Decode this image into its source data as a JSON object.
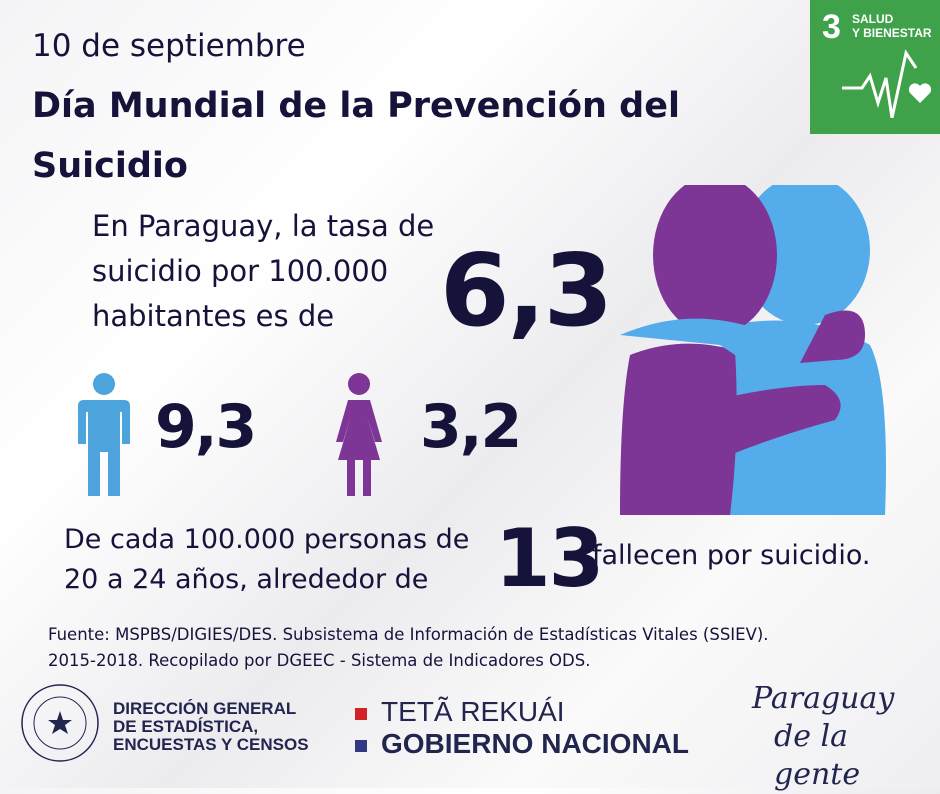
{
  "header": {
    "date": "10 de septiembre",
    "title": "Día Mundial de la Prevención del Suicidio"
  },
  "sdg_badge": {
    "number": "3",
    "label_line1": "SALUD",
    "label_line2": "Y BIENESTAR",
    "icon": "heartbeat-heart-icon",
    "color": "#3fa14a"
  },
  "rate": {
    "text_line1": "En Paraguay, la tasa de",
    "text_line2": "suicidio por 100.000",
    "text_line3": "habitantes es de",
    "value": "6,3"
  },
  "by_sex": {
    "male": {
      "icon": "male-person-icon",
      "value": "9,3",
      "color": "#4da3dc"
    },
    "female": {
      "icon": "female-person-icon",
      "value": "3,2",
      "color": "#7d3596"
    }
  },
  "age_group": {
    "text_line1": "De cada 100.000 personas de",
    "text_line2": "20 a 24 años, alrededor de",
    "value": "13",
    "suffix": "fallecen por suicidio."
  },
  "source": {
    "line1": "Fuente: MSPBS/DIGIES/DES. Subsistema de Información de Estadísticas Vitales (SSIEV).",
    "line2": "2015-2018. Recopilado por DGEEC - Sistema de Indicadores ODS."
  },
  "footer": {
    "dgeec_seal": "REPUBLICA DEL PARAGUAY",
    "dgeec_line1": "DIRECCIÓN GENERAL",
    "dgeec_line2": "DE ESTADÍSTICA,",
    "dgeec_line3": "ENCUESTAS Y CENSOS",
    "gov_line1": "TETÃ REKUÁI",
    "gov_line2": "GOBIERNO NACIONAL",
    "gov_colors": [
      "#d42027",
      "#2f3a82"
    ],
    "slogan_line1": "Paraguay",
    "slogan_line2": "de la gente"
  },
  "colors": {
    "text": "#15133a",
    "purple": "#7d3596",
    "blue": "#55aceb"
  }
}
